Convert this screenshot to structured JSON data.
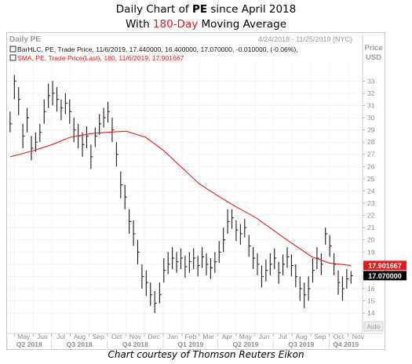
{
  "title": {
    "line1_prefix": "Daily Chart of ",
    "line1_ticker": "PE",
    "line1_suffix": " since April 2018",
    "line2_prefix": "With ",
    "line2_highlight": "180-Day",
    "line2_suffix": " Moving Average"
  },
  "caption": "Chart courtesy of Thomson Reuters Eikon",
  "chart_data": {
    "type": "line",
    "panel_title": "Daily PE",
    "date_range": "4/24/2018 - 11/25/2019 (NYC)",
    "price_label": "Price",
    "currency_label": "USD",
    "auto_label": "Auto",
    "legend": [
      "BarHLC, PE, Trade Price, 11/6/2019, 17.440000, 16.400000, 17.070000, -0.010000, (-0.06%),",
      "SMA, PE, Trade Price(Last), 180, 11/6/2019, 17.901667"
    ],
    "ylim": [
      13.3,
      34.5
    ],
    "y_ticks": [
      14,
      15,
      16,
      17,
      18,
      19,
      20,
      21,
      22,
      23,
      24,
      25,
      26,
      27,
      28,
      29,
      30,
      31,
      32,
      33
    ],
    "months": [
      "May",
      "Jun",
      "Jul",
      "Aug",
      "Sep",
      "Oct",
      "Nov",
      "Dec",
      "Jan",
      "Feb",
      "Mar",
      "Apr",
      "May",
      "Jun",
      "Jul",
      "Aug",
      "Sep",
      "Oct",
      "Nov"
    ],
    "quarters": [
      "Q2 2018",
      "Q3 2018",
      "Q4 2018",
      "Q1 2019",
      "Q2 2019",
      "Q3 2019",
      "Q4 2019"
    ],
    "price_tag": "17.070000",
    "sma_tag": "17.901667",
    "colors": {
      "price": "#1a1a1a",
      "sma": "#e31b1b",
      "sma_tag_bg": "#e31b1b",
      "price_tag_bg": "#000000"
    },
    "series": [
      {
        "name": "PE",
        "kind": "bar_hlc",
        "x": [
          "2018-04-24",
          "2018-05-01",
          "2018-05-08",
          "2018-05-15",
          "2018-05-22",
          "2018-05-29",
          "2018-06-05",
          "2018-06-12",
          "2018-06-19",
          "2018-06-26",
          "2018-07-03",
          "2018-07-10",
          "2018-07-17",
          "2018-07-24",
          "2018-07-31",
          "2018-08-07",
          "2018-08-14",
          "2018-08-21",
          "2018-08-28",
          "2018-09-04",
          "2018-09-11",
          "2018-09-18",
          "2018-09-25",
          "2018-10-02",
          "2018-10-09",
          "2018-10-16",
          "2018-10-23",
          "2018-10-30",
          "2018-11-06",
          "2018-11-13",
          "2018-11-20",
          "2018-11-27",
          "2018-12-04",
          "2018-12-11",
          "2018-12-18",
          "2018-12-26",
          "2019-01-02",
          "2019-01-09",
          "2019-01-16",
          "2019-01-23",
          "2019-01-30",
          "2019-02-06",
          "2019-02-13",
          "2019-02-20",
          "2019-02-27",
          "2019-03-06",
          "2019-03-13",
          "2019-03-20",
          "2019-03-27",
          "2019-04-03",
          "2019-04-10",
          "2019-04-17",
          "2019-04-24",
          "2019-05-01",
          "2019-05-08",
          "2019-05-15",
          "2019-05-22",
          "2019-05-29",
          "2019-06-05",
          "2019-06-12",
          "2019-06-19",
          "2019-06-26",
          "2019-07-03",
          "2019-07-10",
          "2019-07-17",
          "2019-07-24",
          "2019-07-31",
          "2019-08-07",
          "2019-08-14",
          "2019-08-21",
          "2019-08-28",
          "2019-09-04",
          "2019-09-11",
          "2019-09-18",
          "2019-09-25",
          "2019-10-02",
          "2019-10-09",
          "2019-10-16",
          "2019-10-23",
          "2019-10-30",
          "2019-11-06"
        ],
        "close": [
          29.5,
          33.0,
          31.5,
          28.5,
          30.0,
          27.5,
          28.0,
          28.8,
          30.5,
          31.8,
          32.0,
          31.5,
          30.8,
          31.2,
          30.5,
          29.0,
          28.5,
          27.8,
          28.5,
          26.8,
          28.5,
          29.5,
          30.0,
          30.5,
          29.0,
          27.0,
          24.5,
          23.5,
          21.5,
          20.5,
          19.0,
          17.0,
          16.5,
          15.5,
          14.8,
          15.5,
          17.5,
          18.0,
          18.5,
          18.2,
          18.5,
          17.8,
          18.2,
          18.5,
          17.9,
          18.6,
          18.0,
          17.7,
          18.2,
          19.0,
          20.0,
          21.5,
          21.8,
          20.8,
          20.5,
          21.0,
          19.5,
          18.5,
          18.0,
          17.0,
          17.5,
          18.0,
          18.5,
          17.3,
          18.0,
          18.6,
          17.9,
          17.0,
          16.0,
          15.5,
          16.0,
          17.5,
          18.5,
          18.0,
          20.5,
          19.5,
          18.0,
          16.5,
          16.0,
          16.8,
          17.07
        ],
        "high": [
          30.5,
          33.5,
          32.5,
          29.5,
          30.8,
          28.5,
          28.8,
          29.5,
          31.5,
          32.8,
          33.0,
          32.5,
          31.5,
          32.0,
          31.5,
          30.0,
          29.5,
          28.8,
          29.3,
          27.8,
          29.2,
          30.3,
          30.8,
          31.3,
          30.0,
          28.0,
          25.6,
          24.5,
          22.5,
          21.6,
          20.0,
          18.0,
          17.5,
          16.5,
          15.8,
          16.5,
          18.5,
          19.0,
          19.4,
          19.0,
          19.3,
          18.7,
          19.0,
          19.3,
          18.7,
          19.4,
          18.9,
          18.5,
          19.0,
          19.9,
          21.0,
          22.5,
          22.5,
          21.6,
          21.3,
          21.7,
          20.4,
          19.4,
          18.9,
          17.9,
          18.4,
          18.9,
          19.3,
          18.2,
          18.8,
          19.4,
          18.8,
          18.0,
          17.0,
          16.5,
          17.0,
          18.5,
          19.4,
          18.9,
          21.0,
          20.4,
          18.9,
          17.5,
          17.0,
          17.6,
          17.44
        ],
        "low": [
          28.8,
          31.5,
          30.2,
          27.5,
          28.8,
          26.5,
          27.2,
          28.0,
          29.5,
          30.8,
          31.0,
          30.5,
          29.8,
          30.3,
          29.5,
          28.0,
          27.5,
          26.8,
          27.5,
          25.8,
          27.6,
          28.6,
          29.2,
          29.6,
          28.0,
          26.0,
          23.4,
          22.5,
          20.5,
          19.5,
          18.0,
          16.0,
          15.4,
          14.6,
          14.0,
          14.8,
          16.5,
          17.2,
          17.6,
          17.3,
          17.6,
          16.9,
          17.3,
          17.6,
          17.0,
          17.7,
          17.1,
          16.8,
          17.3,
          18.1,
          19.0,
          20.5,
          20.9,
          19.9,
          19.6,
          20.2,
          18.6,
          17.6,
          17.1,
          16.1,
          16.6,
          17.1,
          17.6,
          16.4,
          17.1,
          17.7,
          17.0,
          16.1,
          15.0,
          14.4,
          15.0,
          16.5,
          17.6,
          17.1,
          19.6,
          18.6,
          17.1,
          15.5,
          15.0,
          16.0,
          16.4
        ]
      },
      {
        "name": "SMA 180",
        "kind": "line",
        "x": [
          "2018-04-24",
          "2018-06-01",
          "2018-07-02",
          "2018-08-01",
          "2018-09-04",
          "2018-10-01",
          "2018-11-01",
          "2018-12-03",
          "2019-01-02",
          "2019-02-01",
          "2019-03-01",
          "2019-04-01",
          "2019-05-01",
          "2019-06-03",
          "2019-07-01",
          "2019-08-01",
          "2019-09-03",
          "2019-10-01",
          "2019-11-06"
        ],
        "values": [
          26.8,
          27.3,
          27.8,
          28.4,
          28.7,
          28.8,
          28.9,
          28.4,
          27.3,
          25.9,
          24.6,
          23.6,
          22.7,
          21.8,
          20.8,
          19.7,
          18.6,
          18.1,
          17.9
        ]
      }
    ]
  }
}
